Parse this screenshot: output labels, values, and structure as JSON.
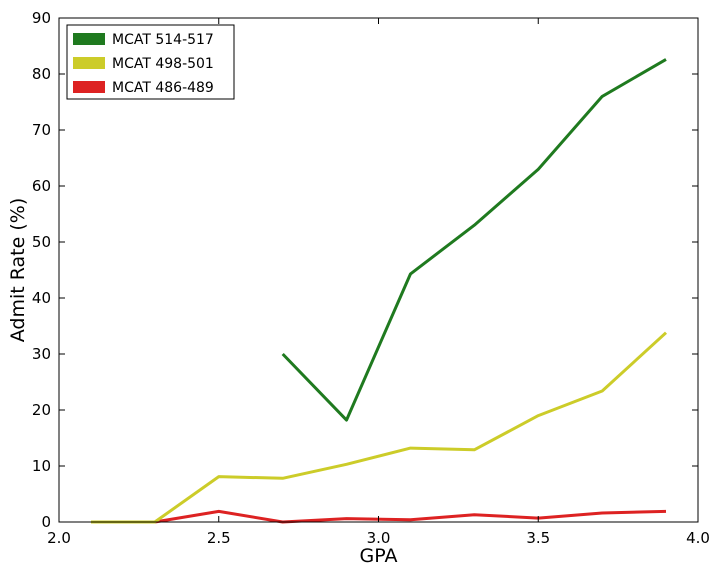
{
  "chart_data": {
    "type": "line",
    "title": "",
    "xlabel": "GPA",
    "ylabel": "Admit Rate (%)",
    "xlim": [
      2.0,
      4.0
    ],
    "ylim": [
      0,
      90
    ],
    "xticks": [
      2.0,
      2.5,
      3.0,
      3.5,
      4.0
    ],
    "xtick_labels": [
      "2.0",
      "2.5",
      "3.0",
      "3.5",
      "4.0"
    ],
    "yticks": [
      0,
      10,
      20,
      30,
      40,
      50,
      60,
      70,
      80,
      90
    ],
    "ytick_labels": [
      "0",
      "10",
      "20",
      "30",
      "40",
      "50",
      "60",
      "70",
      "80",
      "90"
    ],
    "grid": false,
    "legend_position": "top-left",
    "series": [
      {
        "name": "MCAT 514-517",
        "color": "#1f7a1f",
        "x": [
          2.7,
          2.9,
          3.1,
          3.3,
          3.5,
          3.7,
          3.9
        ],
        "y": [
          30.0,
          18.2,
          44.3,
          53.0,
          63.0,
          76.0,
          82.6
        ]
      },
      {
        "name": "MCAT 498-501",
        "color": "#cccc29",
        "x": [
          2.1,
          2.3,
          2.5,
          2.7,
          2.9,
          3.1,
          3.3,
          3.5,
          3.7,
          3.9
        ],
        "y": [
          0.0,
          0.0,
          8.1,
          7.8,
          10.3,
          13.2,
          12.9,
          19.0,
          23.4,
          33.8
        ]
      },
      {
        "name": "MCAT 486-489",
        "color": "#dd2222",
        "x": [
          2.1,
          2.3,
          2.5,
          2.7,
          2.9,
          3.1,
          3.3,
          3.5,
          3.7,
          3.9
        ],
        "y": [
          0.0,
          0.0,
          1.9,
          0.0,
          0.6,
          0.4,
          1.3,
          0.7,
          1.6,
          1.9
        ]
      }
    ]
  }
}
